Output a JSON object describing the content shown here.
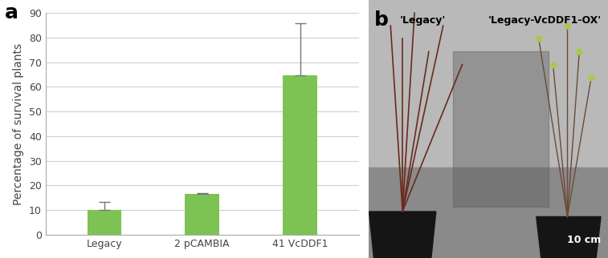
{
  "chart_data": {
    "type": "bar",
    "annotations": [
      "a"
    ],
    "y_label": "Percentage of survival plants",
    "categories": [
      "Legacy",
      "2 pCAMBIA",
      "41 VcDDF1"
    ],
    "values": [
      10,
      16.7,
      64.7
    ],
    "errors": [
      3.3,
      0.2,
      21
    ],
    "color": "#7dc353",
    "ylim": [
      0,
      90
    ],
    "yticks": [
      0,
      10,
      20,
      30,
      40,
      50,
      60,
      70,
      80,
      90
    ],
    "grid": true
  },
  "photo": {
    "panel_label": "b",
    "captions": [
      "'Legacy'",
      "'Legacy-VcDDF1-OX'"
    ],
    "scale_bar": "10 cm"
  }
}
